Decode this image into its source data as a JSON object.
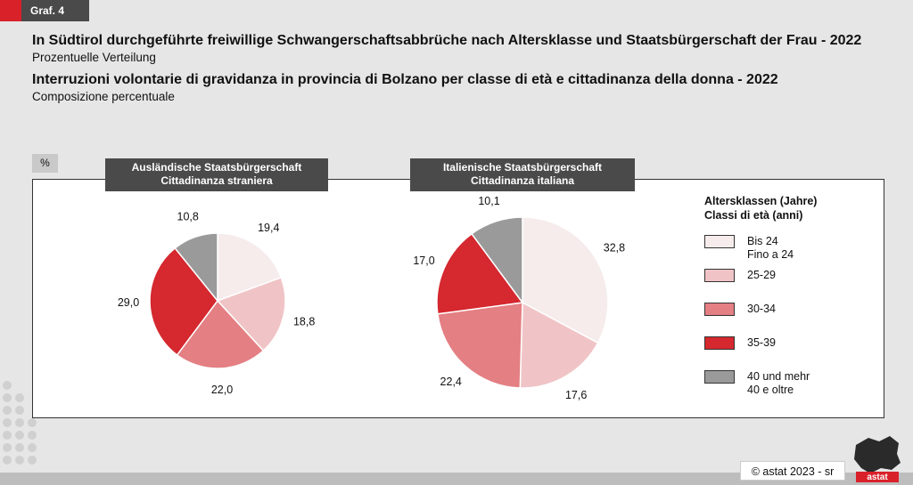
{
  "tag": "Graf. 4",
  "title_de": "In Südtirol durchgeführte freiwillige Schwangerschaftsabbrüche nach Altersklasse und Staatsbürgerschaft der Frau - 2022",
  "subtitle_de": "Prozentuelle Verteilung",
  "title_it": "Interruzioni volontarie di gravidanza in provincia di Bolzano per classe di età e cittadinanza della donna - 2022",
  "subtitle_it": "Composizione percentuale",
  "unit": "%",
  "copyright": "© astat 2023 - sr",
  "logo_text": "astat",
  "legend": {
    "title_line1": "Altersklassen (Jahre)",
    "title_line2": "Classi di età (anni)"
  },
  "chart_data": [
    {
      "type": "pie",
      "title_line1": "Ausländische Staatsbürgerschaft",
      "title_line2": "Cittadinanza straniera",
      "categories": [
        "Bis 24 / Fino a 24",
        "25-29",
        "30-34",
        "35-39",
        "40 und mehr / 40 e oltre"
      ],
      "values": [
        19.4,
        18.8,
        22.0,
        29.0,
        10.8
      ],
      "labels": [
        "19,4",
        "18,8",
        "22,0",
        "29,0",
        "10,8"
      ],
      "colors": [
        "#f6ecec",
        "#f0c4c6",
        "#e47f83",
        "#d5282f",
        "#9a9a9a"
      ]
    },
    {
      "type": "pie",
      "title_line1": "Italienische Staatsbürgerschaft",
      "title_line2": "Cittadinanza italiana",
      "categories": [
        "Bis 24 / Fino a 24",
        "25-29",
        "30-34",
        "35-39",
        "40 und mehr / 40 e oltre"
      ],
      "values": [
        32.8,
        17.6,
        22.4,
        17.0,
        10.1
      ],
      "labels": [
        "32,8",
        "17,6",
        "22,4",
        "17,0",
        "10,1"
      ],
      "colors": [
        "#f6ecec",
        "#f0c4c6",
        "#e47f83",
        "#d5282f",
        "#9a9a9a"
      ]
    }
  ],
  "legend_items": [
    {
      "line1": "Bis 24",
      "line2": "Fino a 24",
      "color": "#f6ecec"
    },
    {
      "line1": "25-29",
      "line2": "",
      "color": "#f0c4c6"
    },
    {
      "line1": "30-34",
      "line2": "",
      "color": "#e47f83"
    },
    {
      "line1": "35-39",
      "line2": "",
      "color": "#d5282f"
    },
    {
      "line1": "40 und mehr",
      "line2": "40 e oltre",
      "color": "#9a9a9a"
    }
  ]
}
